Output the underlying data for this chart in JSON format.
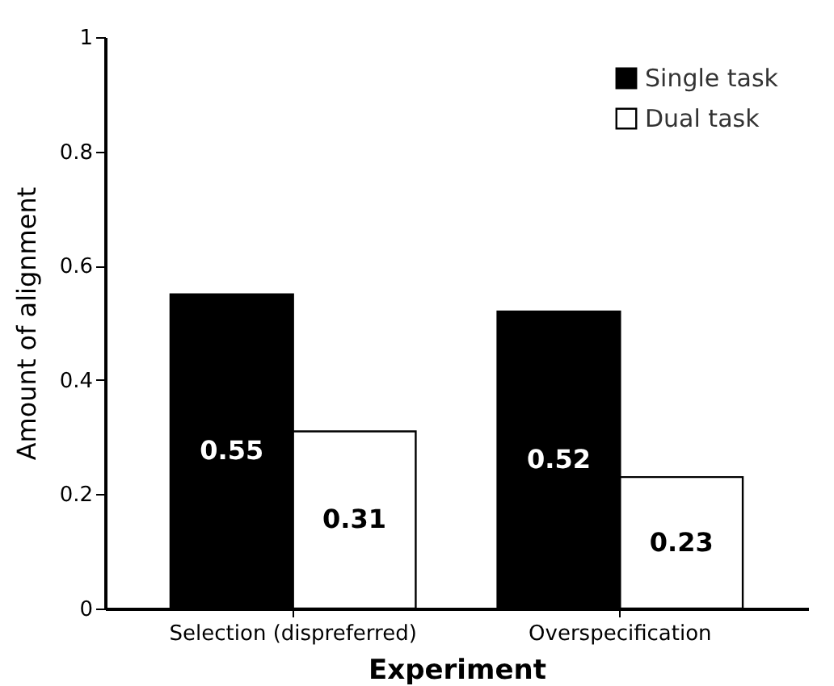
{
  "chart_data": {
    "type": "bar",
    "xlabel": "Experiment",
    "ylabel": "Amount of alignment",
    "categories": [
      "Selection (dispreferred)",
      "Overspecification"
    ],
    "series": [
      {
        "name": "Single task",
        "color": "#000000",
        "values": [
          0.55,
          0.52
        ]
      },
      {
        "name": "Dual task",
        "color": "#ffffff",
        "values": [
          0.31,
          0.23
        ]
      }
    ],
    "ylim": [
      0,
      1
    ],
    "yticks": [
      0,
      0.2,
      0.4,
      0.6,
      0.8,
      1
    ],
    "data_labels": true,
    "legend": "top right",
    "grid": false
  }
}
